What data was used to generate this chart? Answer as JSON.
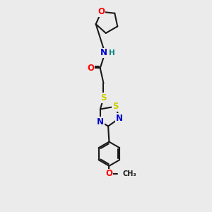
{
  "bg_color": "#ebebeb",
  "bond_color": "#1a1a1a",
  "bond_width": 1.5,
  "atom_colors": {
    "O": "#ff0000",
    "N": "#0000cc",
    "S": "#cccc00",
    "C": "#1a1a1a",
    "H": "#008080"
  },
  "font_size_atom": 8.5,
  "font_size_h": 7.5,
  "font_size_ome": 7.0
}
